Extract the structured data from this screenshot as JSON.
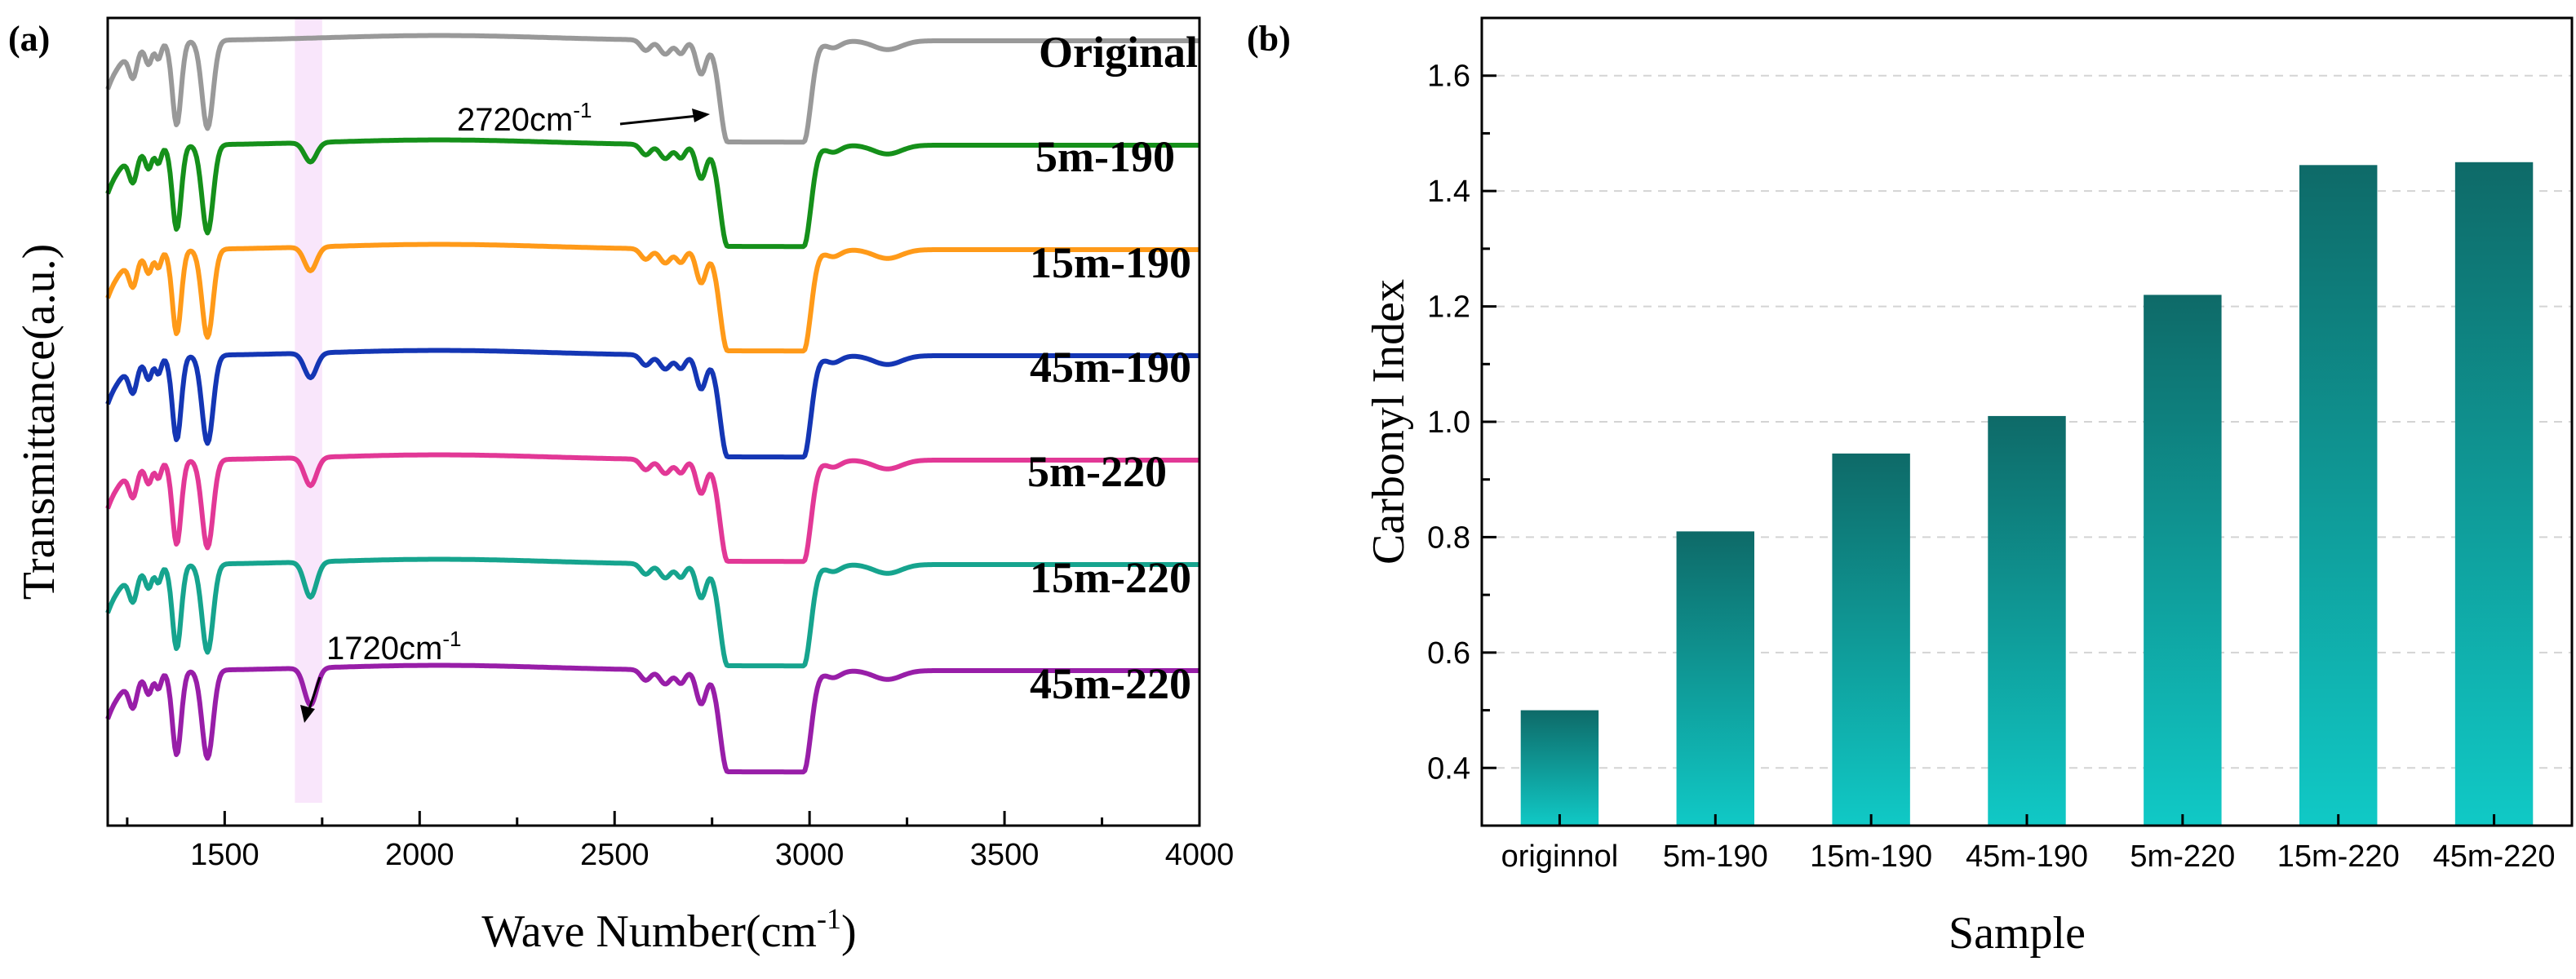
{
  "panel_a": {
    "label": "(a)",
    "xlabel": "Wave Number(cm",
    "xlabel_sup": "-1",
    "xlabel_end": ")",
    "ylabel": "Transmittance(a.u.)",
    "ann_2720": "2720cm",
    "ann_2720_sup": "-1",
    "ann_1720": "1720cm",
    "ann_1720_sup": "-1",
    "highlight_band": [
      1680,
      1750
    ],
    "highlight_color": "#f9e6fb"
  },
  "panel_b": {
    "label": "(b)",
    "bar_top_color": "#0e6a68",
    "bar_bottom_color": "#10c9c6"
  },
  "chart_data": [
    {
      "type": "line",
      "title": "",
      "xlabel": "Wave Number(cm-1)",
      "ylabel": "Transmittance(a.u.)",
      "xlim": [
        1200,
        4000
      ],
      "xticks": [
        1500,
        2000,
        2500,
        3000,
        3500,
        4000
      ],
      "xtick_labels": [
        "1500",
        "2000",
        "2500",
        "3000",
        "3500",
        "4000"
      ],
      "yticks": [],
      "series": [
        {
          "name": "Original",
          "color": "#999999",
          "c1720_depth": 0.0
        },
        {
          "name": "5m-190",
          "color": "#15901a",
          "c1720_depth": 0.22
        },
        {
          "name": "15m-190",
          "color": "#ff9a19",
          "c1720_depth": 0.27
        },
        {
          "name": "45m-190",
          "color": "#1436b4",
          "c1720_depth": 0.28
        },
        {
          "name": "5m-220",
          "color": "#e23896",
          "c1720_depth": 0.32
        },
        {
          "name": "15m-220",
          "color": "#16a48e",
          "c1720_depth": 0.4
        },
        {
          "name": "45m-220",
          "color": "#981ea8",
          "c1720_depth": 0.42
        }
      ],
      "annotations": [
        "2720cm-1",
        "1720cm-1"
      ]
    },
    {
      "type": "bar",
      "title": "",
      "xlabel": "Sample",
      "ylabel": "Carbonyl Index",
      "categories": [
        "originnol",
        "5m-190",
        "15m-190",
        "45m-190",
        "5m-220",
        "15m-220",
        "45m-220"
      ],
      "values": [
        0.5,
        0.81,
        0.945,
        1.01,
        1.22,
        1.445,
        1.45
      ],
      "ylim": [
        0.3,
        1.7
      ],
      "yticks": [
        0.4,
        0.6,
        0.8,
        1.0,
        1.2,
        1.4,
        1.6
      ],
      "ytick_labels": [
        "0.4",
        "0.6",
        "0.8",
        "1.0",
        "1.2",
        "1.4",
        "1.6"
      ],
      "grid": true
    }
  ]
}
